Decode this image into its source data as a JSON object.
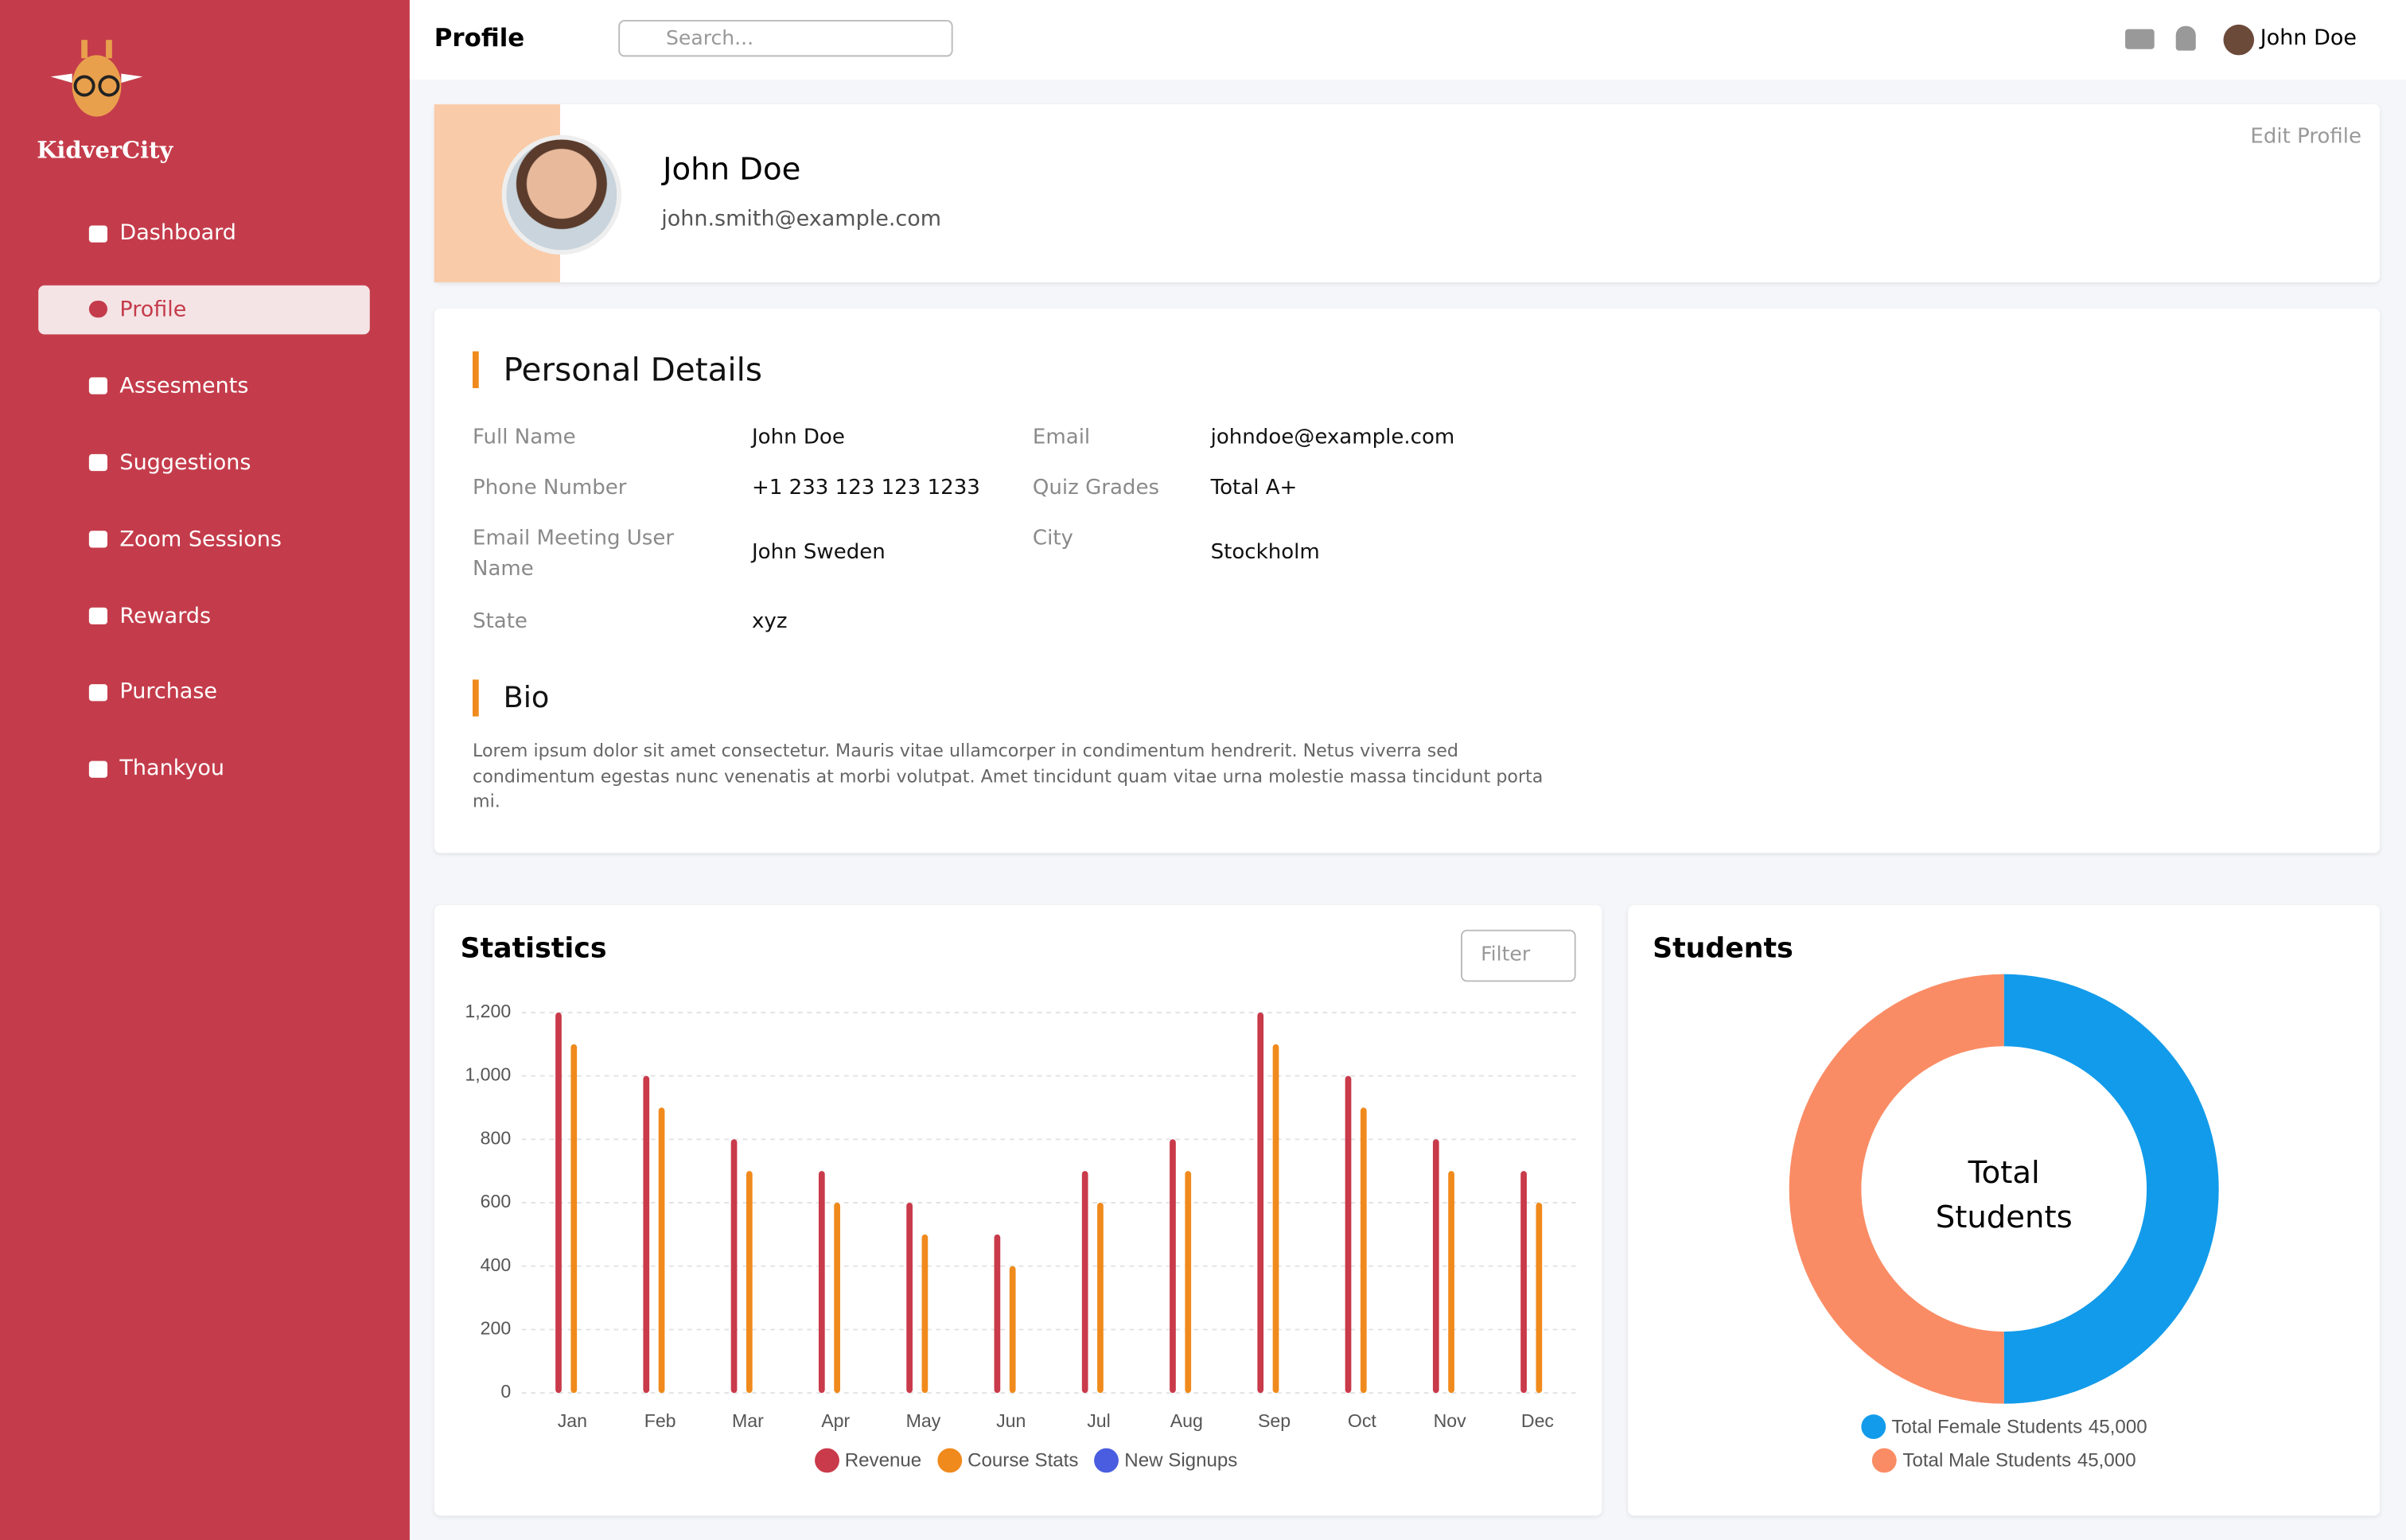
{
  "sidebar": {
    "brand": "KidverCity",
    "nav": [
      "Dashboard",
      "Profile",
      "Assesments",
      "Suggestions",
      "Zoom Sessions",
      "Rewards",
      "Purchase",
      "Thankyou"
    ],
    "active": "Profile"
  },
  "header": {
    "title": "Profile",
    "search_placeholder": "Search...",
    "user": "John Doe"
  },
  "profile": {
    "name": "John Doe",
    "email": "john.smith@example.com",
    "edit": "Edit Profile"
  },
  "personal_details": {
    "title": "Personal Details",
    "rows": [
      [
        "Full Name",
        "John Doe",
        "Email",
        "johndoe@example.com"
      ],
      [
        "Phone Number",
        "+1 233 123 123 1233",
        "Quiz Grades",
        "Total A+"
      ],
      [
        "Email Meeting User Name",
        "John Sweden",
        "City",
        "Stockholm"
      ],
      [
        "State",
        "xyz"
      ]
    ]
  },
  "bio": {
    "title": "Bio",
    "text": "Lorem ipsum dolor sit amet consectetur. Mauris vitae ullamcorper in condimentum hendrerit. Netus viverra sed condimentum egestas nunc venenatis at morbi volutpat. Amet tincidunt quam vitae urna molestie massa tincidunt porta mi."
  },
  "chart_data": [
    {
      "type": "bar",
      "title": "Statistics",
      "filter": "Filter",
      "categories": [
        "Jan",
        "Feb",
        "Mar",
        "Apr",
        "May",
        "Jun",
        "Jul",
        "Aug",
        "Sep",
        "Oct",
        "Nov",
        "Dec"
      ],
      "series": [
        {
          "name": "Revenue",
          "color": "#c93a4a",
          "values": [
            1200,
            1000,
            800,
            700,
            600,
            500,
            700,
            800,
            1200,
            1000,
            800,
            700
          ]
        },
        {
          "name": "Course Stats",
          "color": "#f08a1c",
          "values": [
            1100,
            900,
            700,
            600,
            500,
            400,
            600,
            700,
            1100,
            900,
            700,
            600
          ]
        },
        {
          "name": "New Signups",
          "color": "#4a5de0",
          "values": [
            null,
            null,
            null,
            null,
            null,
            null,
            null,
            null,
            null,
            null,
            null,
            null
          ]
        }
      ],
      "ylim": [
        0,
        1200
      ],
      "yticks": [
        0,
        200,
        400,
        600,
        800,
        {
          "value": 1000,
          "label": "1,000"
        },
        {
          "value": 1200,
          "label": "1,200"
        }
      ],
      "grid": true
    },
    {
      "type": "donut",
      "title": "Students",
      "center_label": "Total Students",
      "categories": [
        "Total Female Students",
        "Total Male Students"
      ],
      "values": [
        45000,
        45000
      ],
      "value_labels": [
        "45,000",
        "45,000"
      ],
      "colors": [
        "#129bea",
        "#fa8c65"
      ]
    }
  ]
}
